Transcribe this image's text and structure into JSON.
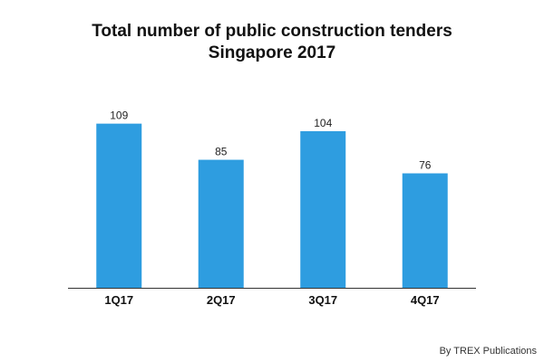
{
  "chart_data": {
    "type": "bar",
    "title_line1": "Total number of public construction tenders",
    "title_line2": "Singapore 2017",
    "categories": [
      "1Q17",
      "2Q17",
      "3Q17",
      "4Q17"
    ],
    "values": [
      109,
      85,
      104,
      76
    ],
    "xlabel": "",
    "ylabel": "",
    "ylim": [
      0,
      125
    ],
    "grid": false,
    "bar_color": "#2e9de0",
    "axis_color": "#333333"
  },
  "credit": "By TREX Publications"
}
